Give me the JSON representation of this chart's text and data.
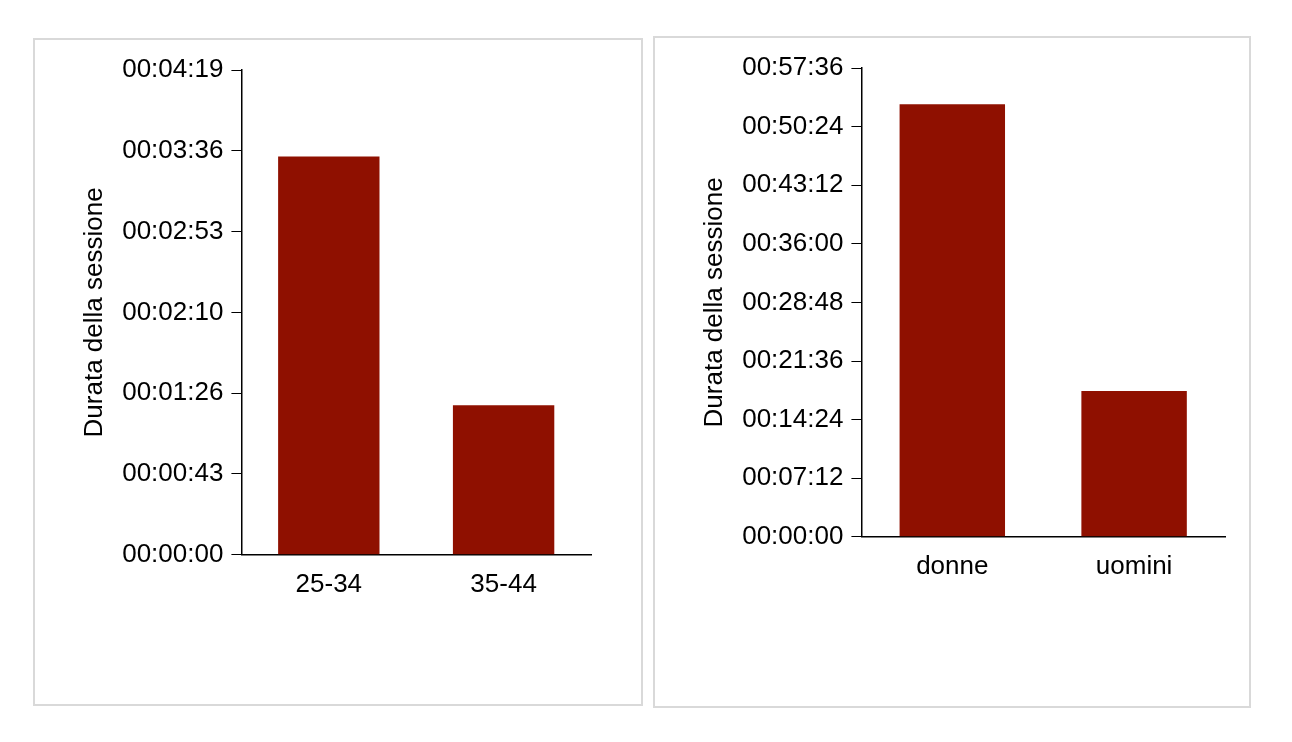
{
  "chart_data": [
    {
      "type": "bar",
      "ylabel": "Durata della sessione",
      "categories": [
        "25-34",
        "35-44"
      ],
      "values": [
        213,
        80
      ],
      "color": "#8f1000",
      "ylim": [
        0,
        259.2
      ],
      "yticks": [
        {
          "value": 0,
          "label": "00:00:00"
        },
        {
          "value": 43.2,
          "label": "00:00:43"
        },
        {
          "value": 86.4,
          "label": "00:01:26"
        },
        {
          "value": 129.6,
          "label": "00:02:10"
        },
        {
          "value": 172.8,
          "label": "00:02:53"
        },
        {
          "value": 216,
          "label": "00:03:36"
        },
        {
          "value": 259.2,
          "label": "00:04:19"
        }
      ],
      "grid": false,
      "legend": false
    },
    {
      "type": "bar",
      "ylabel": "Durata della sessione",
      "categories": [
        "donne",
        "uomini"
      ],
      "values": [
        3189,
        1075
      ],
      "color": "#8f1000",
      "ylim": [
        0,
        3456
      ],
      "yticks": [
        {
          "value": 0,
          "label": "00:00:00"
        },
        {
          "value": 432,
          "label": "00:07:12"
        },
        {
          "value": 864,
          "label": "00:14:24"
        },
        {
          "value": 1296,
          "label": "00:21:36"
        },
        {
          "value": 1728,
          "label": "00:28:48"
        },
        {
          "value": 2160,
          "label": "00:36:00"
        },
        {
          "value": 2592,
          "label": "00:43:12"
        },
        {
          "value": 3024,
          "label": "00:50:24"
        },
        {
          "value": 3456,
          "label": "00:57:36"
        }
      ],
      "grid": false,
      "legend": false
    }
  ]
}
